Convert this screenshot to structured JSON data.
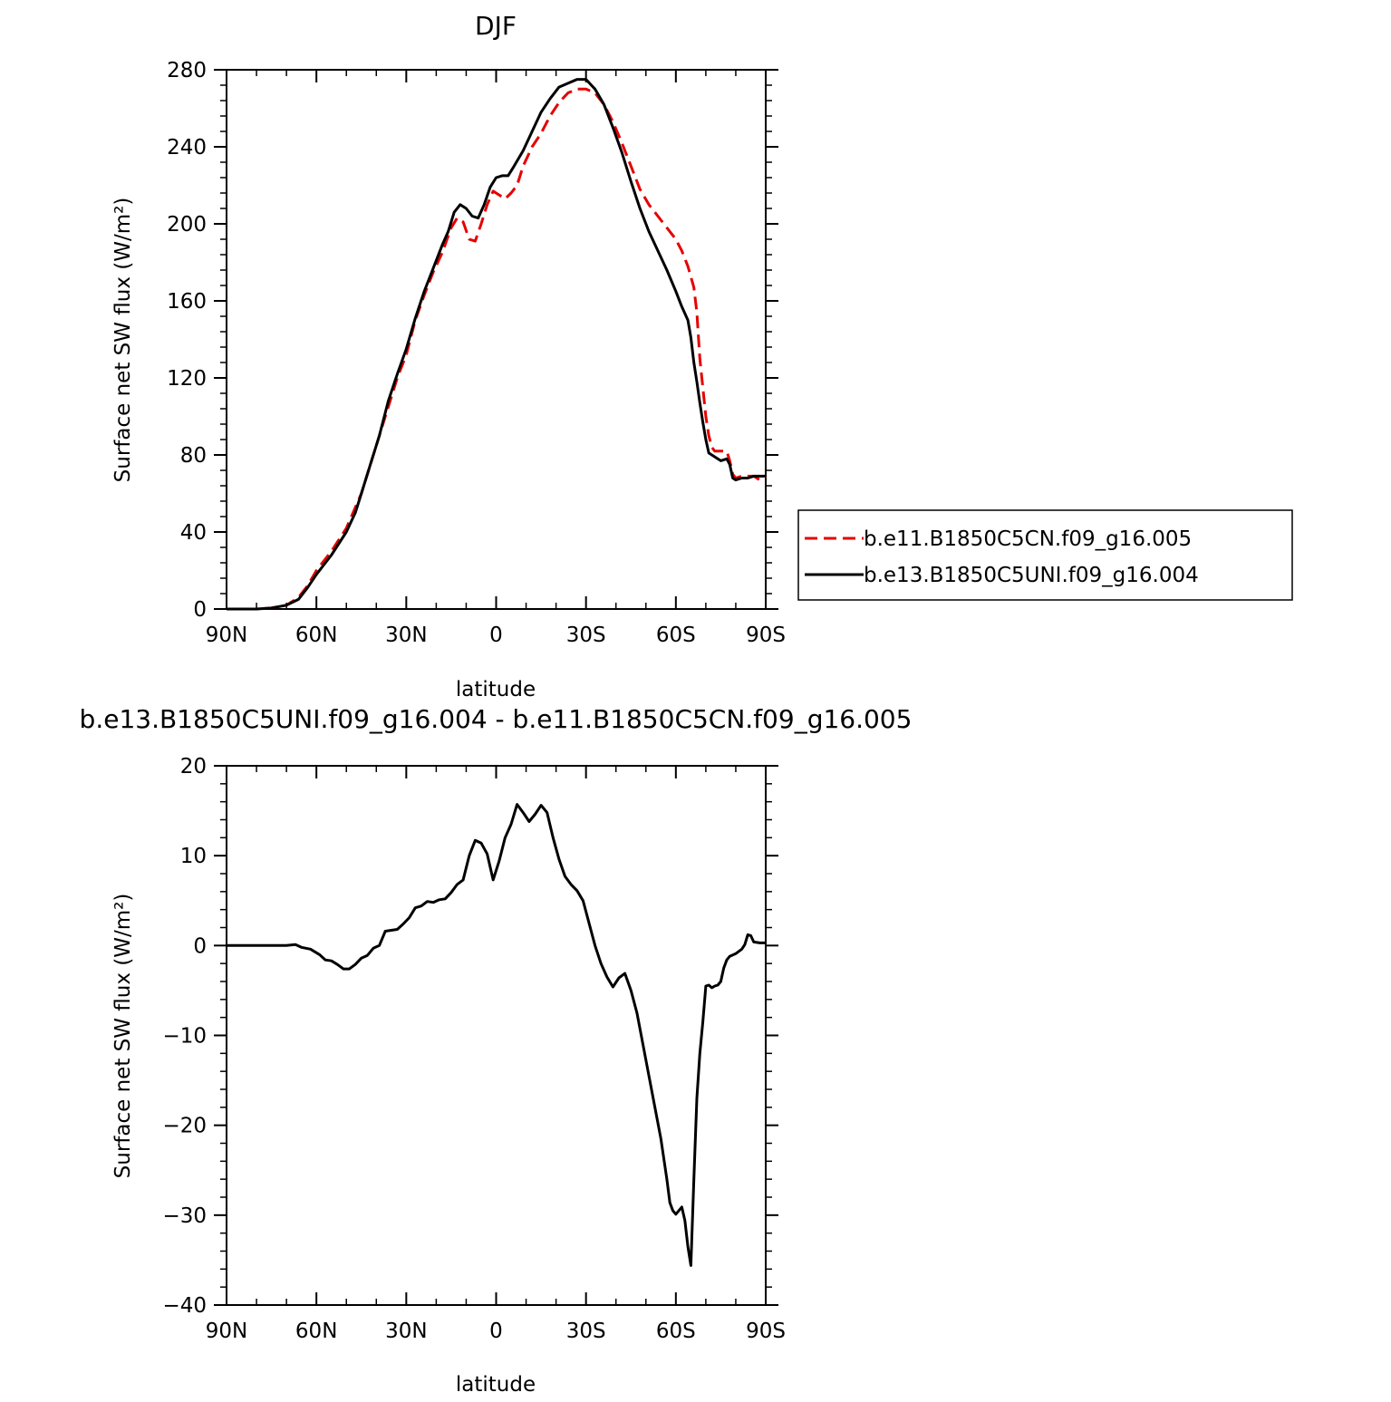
{
  "chart_data": [
    {
      "type": "line",
      "title": "DJF",
      "xlabel": "latitude",
      "ylabel": "Surface net SW flux (W/m²)",
      "xlim": [
        -90,
        90
      ],
      "ylim": [
        0,
        280
      ],
      "x_ticks": [
        {
          "value": -90,
          "label": "90N"
        },
        {
          "value": -60,
          "label": "60N"
        },
        {
          "value": -30,
          "label": "30N"
        },
        {
          "value": 0,
          "label": "0"
        },
        {
          "value": 30,
          "label": "30S"
        },
        {
          "value": 60,
          "label": "60S"
        },
        {
          "value": 90,
          "label": "90S"
        }
      ],
      "y_ticks": [
        0,
        40,
        80,
        120,
        160,
        200,
        240,
        280
      ],
      "legend_position": "right",
      "series": [
        {
          "name": "b.e11.B1850C5CN.f09_g16.005",
          "color": "#e60000",
          "style": "dashed",
          "points": [
            [
              -90,
              0
            ],
            [
              -80,
              0
            ],
            [
              -75,
              0.5
            ],
            [
              -70,
              2
            ],
            [
              -66,
              6
            ],
            [
              -63,
              12
            ],
            [
              -60,
              20
            ],
            [
              -55,
              30
            ],
            [
              -50,
              42
            ],
            [
              -45,
              60
            ],
            [
              -42,
              75
            ],
            [
              -39,
              90
            ],
            [
              -36,
              105
            ],
            [
              -33,
              120
            ],
            [
              -30,
              132
            ],
            [
              -27,
              150
            ],
            [
              -24,
              163
            ],
            [
              -21,
              175
            ],
            [
              -18,
              185
            ],
            [
              -15,
              198
            ],
            [
              -13,
              203
            ],
            [
              -11,
              201
            ],
            [
              -9,
              192
            ],
            [
              -7,
              191
            ],
            [
              -5,
              200
            ],
            [
              -3,
              210
            ],
            [
              -1,
              217
            ],
            [
              1,
              215
            ],
            [
              3,
              213
            ],
            [
              5,
              216
            ],
            [
              7,
              220
            ],
            [
              9,
              230
            ],
            [
              12,
              240
            ],
            [
              15,
              247
            ],
            [
              18,
              256
            ],
            [
              21,
              263
            ],
            [
              24,
              268
            ],
            [
              27,
              270
            ],
            [
              30,
              270
            ],
            [
              33,
              268
            ],
            [
              36,
              262
            ],
            [
              39,
              253
            ],
            [
              42,
              242
            ],
            [
              45,
              230
            ],
            [
              48,
              218
            ],
            [
              51,
              210
            ],
            [
              54,
              204
            ],
            [
              57,
              198
            ],
            [
              60,
              192
            ],
            [
              62,
              186
            ],
            [
              64,
              178
            ],
            [
              66,
              167
            ],
            [
              67,
              154
            ],
            [
              68,
              130
            ],
            [
              69,
              115
            ],
            [
              70,
              100
            ],
            [
              71,
              90
            ],
            [
              72,
              84
            ],
            [
              73,
              82
            ],
            [
              75,
              82
            ],
            [
              77,
              82
            ],
            [
              78,
              77
            ],
            [
              79,
              70
            ],
            [
              80,
              68
            ],
            [
              82,
              69
            ],
            [
              84,
              69
            ],
            [
              86,
              69
            ],
            [
              88,
              67
            ],
            [
              90,
              69
            ]
          ]
        },
        {
          "name": "b.e13.B1850C5UNI.f09_g16.004",
          "color": "#000000",
          "style": "solid",
          "points": [
            [
              -90,
              0
            ],
            [
              -80,
              0
            ],
            [
              -75,
              0.5
            ],
            [
              -70,
              2
            ],
            [
              -66,
              5
            ],
            [
              -63,
              11
            ],
            [
              -60,
              18
            ],
            [
              -55,
              28
            ],
            [
              -50,
              40
            ],
            [
              -47,
              50
            ],
            [
              -45,
              60
            ],
            [
              -42,
              75
            ],
            [
              -39,
              90
            ],
            [
              -36,
              108
            ],
            [
              -33,
              122
            ],
            [
              -30,
              135
            ],
            [
              -27,
              151
            ],
            [
              -24,
              165
            ],
            [
              -21,
              177
            ],
            [
              -18,
              189
            ],
            [
              -16,
              196
            ],
            [
              -14,
              206
            ],
            [
              -12,
              210
            ],
            [
              -10,
              208
            ],
            [
              -8,
              204
            ],
            [
              -6,
              203
            ],
            [
              -4,
              210
            ],
            [
              -2,
              219
            ],
            [
              0,
              224
            ],
            [
              2,
              225
            ],
            [
              4,
              225
            ],
            [
              6,
              230
            ],
            [
              9,
              238
            ],
            [
              12,
              248
            ],
            [
              15,
              258
            ],
            [
              18,
              265
            ],
            [
              21,
              271
            ],
            [
              24,
              273
            ],
            [
              27,
              275
            ],
            [
              30,
              275
            ],
            [
              33,
              270
            ],
            [
              36,
              262
            ],
            [
              39,
              250
            ],
            [
              42,
              237
            ],
            [
              45,
              222
            ],
            [
              48,
              208
            ],
            [
              51,
              196
            ],
            [
              54,
              186
            ],
            [
              57,
              176
            ],
            [
              60,
              165
            ],
            [
              62,
              157
            ],
            [
              64,
              150
            ],
            [
              65,
              141
            ],
            [
              66,
              128
            ],
            [
              67,
              118
            ],
            [
              68,
              107
            ],
            [
              69,
              97
            ],
            [
              70,
              88
            ],
            [
              71,
              81
            ],
            [
              73,
              79
            ],
            [
              75,
              77
            ],
            [
              77,
              78
            ],
            [
              78,
              75
            ],
            [
              79,
              68
            ],
            [
              80,
              67
            ],
            [
              82,
              68
            ],
            [
              84,
              68
            ],
            [
              86,
              69
            ],
            [
              88,
              69
            ],
            [
              90,
              69
            ]
          ]
        }
      ]
    },
    {
      "type": "line",
      "title": "b.e13.B1850C5UNI.f09_g16.004 - b.e11.B1850C5CN.f09_g16.005",
      "xlabel": "latitude",
      "ylabel": "Surface net SW flux (W/m²)",
      "xlim": [
        -90,
        90
      ],
      "ylim": [
        -40,
        20
      ],
      "x_ticks": [
        {
          "value": -90,
          "label": "90N"
        },
        {
          "value": -60,
          "label": "60N"
        },
        {
          "value": -30,
          "label": "30N"
        },
        {
          "value": 0,
          "label": "0"
        },
        {
          "value": 30,
          "label": "30S"
        },
        {
          "value": 60,
          "label": "60S"
        },
        {
          "value": 90,
          "label": "90S"
        }
      ],
      "y_ticks": [
        -40,
        -30,
        -20,
        -10,
        0,
        10,
        20
      ],
      "series": [
        {
          "color": "#000000",
          "style": "solid",
          "points": [
            [
              -90,
              0
            ],
            [
              -80,
              0
            ],
            [
              -70,
              0
            ],
            [
              -67,
              0.1
            ],
            [
              -65,
              -0.2
            ],
            [
              -62,
              -0.4
            ],
            [
              -59,
              -1
            ],
            [
              -57,
              -1.6
            ],
            [
              -55,
              -1.7
            ],
            [
              -53,
              -2.1
            ],
            [
              -51,
              -2.6
            ],
            [
              -49,
              -2.6
            ],
            [
              -47,
              -2.1
            ],
            [
              -45,
              -1.4
            ],
            [
              -43,
              -1.1
            ],
            [
              -41,
              -0.3
            ],
            [
              -39,
              0
            ],
            [
              -37,
              1.6
            ],
            [
              -35,
              1.7
            ],
            [
              -33,
              1.8
            ],
            [
              -31,
              2.4
            ],
            [
              -29,
              3.1
            ],
            [
              -27,
              4.2
            ],
            [
              -25,
              4.4
            ],
            [
              -23,
              4.9
            ],
            [
              -21,
              4.8
            ],
            [
              -19,
              5.1
            ],
            [
              -17,
              5.2
            ],
            [
              -15,
              5.9
            ],
            [
              -13,
              6.8
            ],
            [
              -11,
              7.3
            ],
            [
              -9,
              10
            ],
            [
              -7,
              11.7
            ],
            [
              -5,
              11.4
            ],
            [
              -3,
              10.2
            ],
            [
              -1,
              7.3
            ],
            [
              1,
              9.4
            ],
            [
              3,
              12
            ],
            [
              5,
              13.5
            ],
            [
              7,
              15.7
            ],
            [
              9,
              14.8
            ],
            [
              11,
              13.8
            ],
            [
              13,
              14.6
            ],
            [
              15,
              15.6
            ],
            [
              17,
              14.8
            ],
            [
              19,
              12
            ],
            [
              21,
              9.6
            ],
            [
              23,
              7.7
            ],
            [
              25,
              6.8
            ],
            [
              27,
              6.1
            ],
            [
              29,
              5
            ],
            [
              31,
              2.5
            ],
            [
              33,
              0
            ],
            [
              35,
              -2
            ],
            [
              37,
              -3.5
            ],
            [
              39,
              -4.6
            ],
            [
              41,
              -3.6
            ],
            [
              43,
              -3.1
            ],
            [
              45,
              -5
            ],
            [
              47,
              -7.5
            ],
            [
              49,
              -11
            ],
            [
              51,
              -14.5
            ],
            [
              53,
              -18
            ],
            [
              55,
              -21.5
            ],
            [
              57,
              -26
            ],
            [
              58,
              -28.6
            ],
            [
              59,
              -29.5
            ],
            [
              60,
              -29.9
            ],
            [
              62,
              -29.1
            ],
            [
              63,
              -30.6
            ],
            [
              64,
              -33.5
            ],
            [
              65,
              -35.6
            ],
            [
              66,
              -26
            ],
            [
              67,
              -17
            ],
            [
              68,
              -12
            ],
            [
              69,
              -8.5
            ],
            [
              70,
              -4.5
            ],
            [
              71,
              -4.4
            ],
            [
              72,
              -4.7
            ],
            [
              73,
              -4.5
            ],
            [
              74,
              -4.4
            ],
            [
              75,
              -4
            ],
            [
              76,
              -2.5
            ],
            [
              77,
              -1.6
            ],
            [
              78,
              -1.2
            ],
            [
              80,
              -0.9
            ],
            [
              82,
              -0.4
            ],
            [
              83,
              0.1
            ],
            [
              84,
              1.2
            ],
            [
              85,
              1.1
            ],
            [
              86,
              0.4
            ],
            [
              88,
              0.3
            ],
            [
              90,
              0.3
            ]
          ]
        }
      ]
    }
  ]
}
